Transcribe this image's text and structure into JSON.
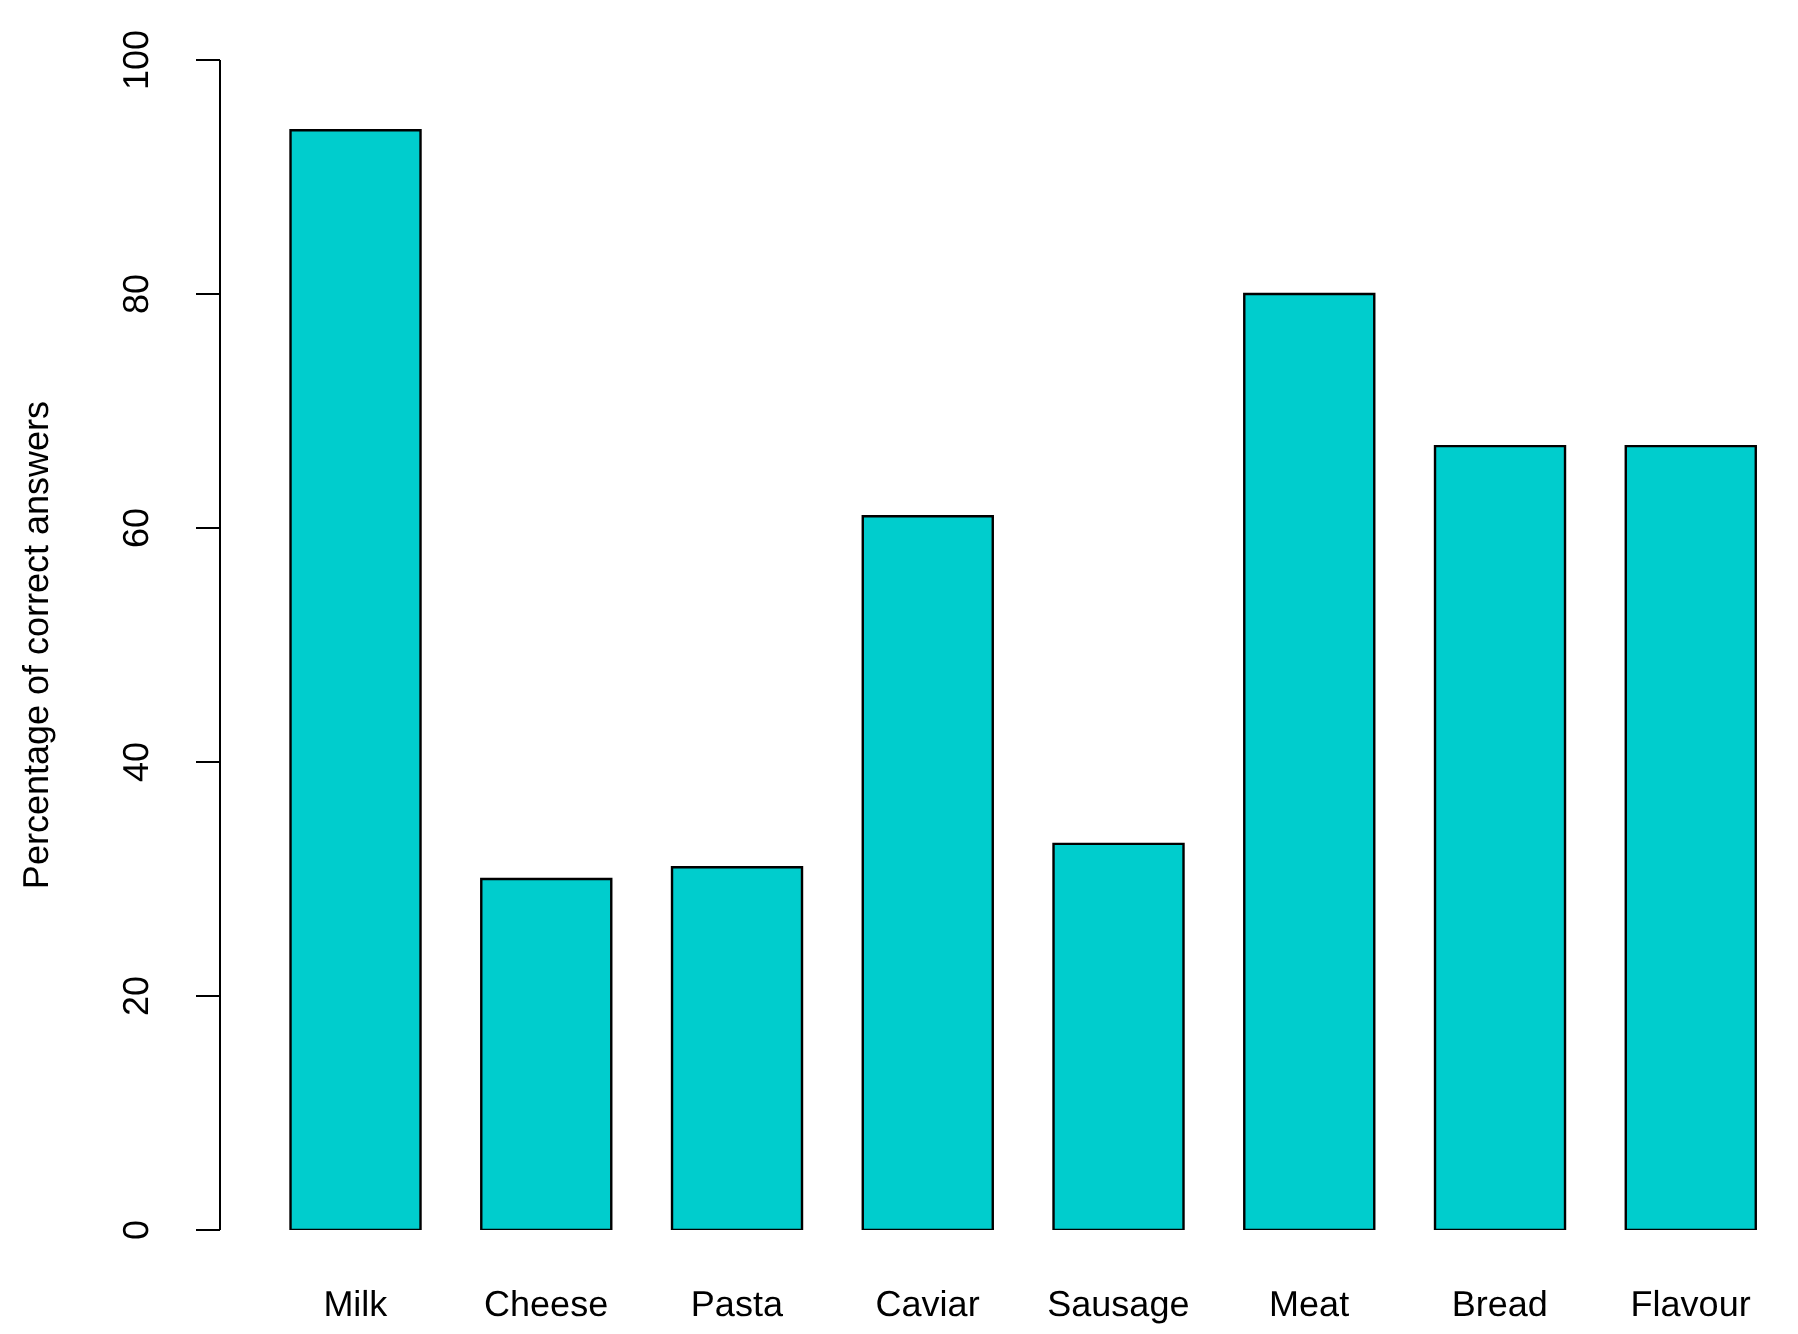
{
  "chart_data": {
    "type": "bar",
    "ylabel": "Percentage of correct answers",
    "categories": [
      "Milk",
      "Cheese",
      "Pasta",
      "Caviar",
      "Sausage",
      "Meat",
      "Bread",
      "Flavour"
    ],
    "values": [
      94,
      30,
      31,
      61,
      33,
      80,
      67,
      67
    ],
    "color": "#00cdcd",
    "ylim": [
      0,
      100
    ],
    "yticks": [
      0,
      20,
      40,
      60,
      80,
      100
    ],
    "grid": false,
    "legend": false
  }
}
